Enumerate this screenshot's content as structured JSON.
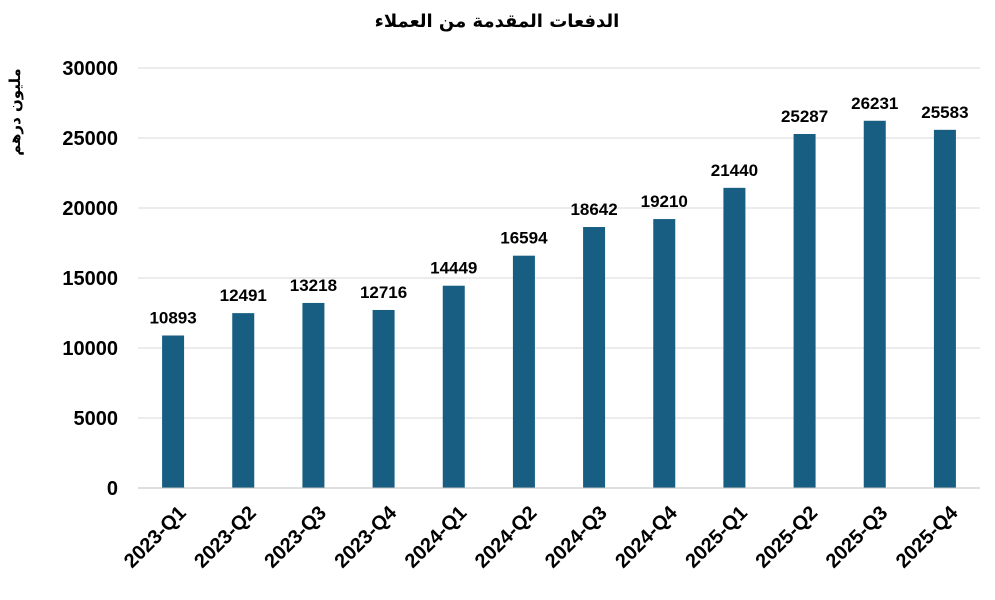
{
  "chart_data": {
    "type": "bar",
    "title": "الدفعات المقدمة من العملاء",
    "xlabel": "",
    "ylabel": "مليون درهم",
    "categories": [
      "2023-Q1",
      "2023-Q2",
      "2023-Q3",
      "2023-Q4",
      "2024-Q1",
      "2024-Q2",
      "2024-Q3",
      "2024-Q4",
      "2025-Q1",
      "2025-Q2",
      "2025-Q3",
      "2025-Q4"
    ],
    "values": [
      10893,
      12491,
      13218,
      12716,
      14449,
      16594,
      18642,
      19210,
      21440,
      25287,
      26231,
      25583
    ],
    "ylim": [
      0,
      30000
    ],
    "yticks": [
      0,
      5000,
      10000,
      15000,
      20000,
      25000,
      30000
    ],
    "grid": true,
    "data_labels": true,
    "bar_color": "#175e82"
  }
}
